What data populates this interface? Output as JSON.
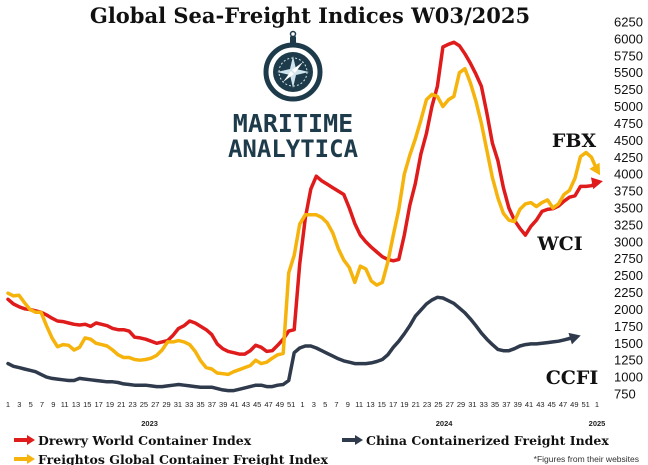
{
  "chart_data": {
    "type": "line",
    "title": "Global Sea-Freight Indices W03/2025",
    "ylim": [
      750,
      6250
    ],
    "y_ticks": [
      6250,
      6000,
      5750,
      5500,
      5250,
      5000,
      4750,
      4500,
      4250,
      4000,
      3750,
      3500,
      3250,
      3000,
      2750,
      2500,
      2250,
      2000,
      1750,
      1500,
      1250,
      1000,
      750
    ],
    "x_week_labels": [
      "1",
      "3",
      "5",
      "7",
      "9",
      "11",
      "13",
      "15",
      "17",
      "19",
      "21",
      "23",
      "25",
      "27",
      "29",
      "31",
      "33",
      "35",
      "37",
      "39",
      "41",
      "43",
      "45",
      "47",
      "49",
      "51",
      "1",
      "3",
      "5",
      "7",
      "9",
      "11",
      "13",
      "15",
      "17",
      "19",
      "21",
      "23",
      "25",
      "27",
      "29",
      "31",
      "33",
      "35",
      "37",
      "39",
      "41",
      "43",
      "45",
      "47",
      "49",
      "51",
      "1"
    ],
    "year_labels": [
      "2023",
      "2024",
      "2025"
    ],
    "series": [
      {
        "name": "Drewry World Container Index",
        "tag": "WCI",
        "color": "#e01b1b",
        "values": [
          2150,
          2080,
          2040,
          2010,
          2000,
          1980,
          1960,
          1920,
          1870,
          1830,
          1820,
          1800,
          1780,
          1770,
          1780,
          1750,
          1800,
          1780,
          1760,
          1720,
          1700,
          1700,
          1680,
          1590,
          1580,
          1560,
          1530,
          1500,
          1520,
          1540,
          1620,
          1720,
          1760,
          1830,
          1800,
          1750,
          1700,
          1630,
          1490,
          1420,
          1380,
          1360,
          1340,
          1340,
          1390,
          1470,
          1440,
          1380,
          1390,
          1470,
          1560,
          1680,
          1700,
          2670,
          3350,
          3780,
          3970,
          3900,
          3850,
          3800,
          3750,
          3700,
          3500,
          3270,
          3100,
          3000,
          2920,
          2850,
          2780,
          2740,
          2720,
          2740,
          3100,
          3540,
          3860,
          4300,
          4600,
          5000,
          5300,
          5880,
          5920,
          5950,
          5900,
          5780,
          5640,
          5480,
          5300,
          4900,
          4460,
          4200,
          3800,
          3500,
          3320,
          3200,
          3100,
          3230,
          3320,
          3450,
          3480,
          3490,
          3530,
          3600,
          3660,
          3680,
          3820,
          3820,
          3830,
          3880
        ]
      },
      {
        "name": "Freightos Global Container Freight Index",
        "tag": "FBX",
        "color": "#f5b30b",
        "values": [
          2240,
          2200,
          2210,
          2100,
          2000,
          1960,
          1960,
          1760,
          1580,
          1450,
          1480,
          1470,
          1400,
          1440,
          1580,
          1560,
          1500,
          1480,
          1460,
          1400,
          1330,
          1290,
          1290,
          1260,
          1250,
          1260,
          1280,
          1320,
          1400,
          1520,
          1520,
          1540,
          1520,
          1480,
          1380,
          1240,
          1140,
          1120,
          1060,
          1050,
          1040,
          1080,
          1110,
          1140,
          1170,
          1250,
          1200,
          1220,
          1280,
          1330,
          1350,
          2540,
          2800,
          3260,
          3400,
          3400,
          3400,
          3360,
          3280,
          3130,
          2900,
          2730,
          2620,
          2400,
          2640,
          2600,
          2420,
          2360,
          2400,
          2700,
          3100,
          3480,
          4000,
          4280,
          4520,
          4800,
          5100,
          5180,
          5150,
          5000,
          5100,
          5150,
          5500,
          5560,
          5350,
          5080,
          4750,
          4350,
          3950,
          3650,
          3420,
          3320,
          3300,
          3480,
          3560,
          3580,
          3520,
          3580,
          3620,
          3500,
          3560,
          3700,
          3760,
          3940,
          4260,
          4320,
          4250,
          4060
        ]
      },
      {
        "name": "China Containerized Freight Index",
        "tag": "CCFI",
        "color": "#2f3b4c",
        "values": [
          1200,
          1160,
          1140,
          1120,
          1100,
          1080,
          1040,
          1000,
          980,
          970,
          960,
          950,
          950,
          980,
          970,
          960,
          950,
          940,
          930,
          930,
          920,
          900,
          890,
          880,
          880,
          880,
          870,
          860,
          860,
          870,
          880,
          890,
          880,
          870,
          860,
          850,
          850,
          850,
          830,
          810,
          800,
          800,
          820,
          840,
          860,
          880,
          880,
          860,
          860,
          880,
          890,
          950,
          1360,
          1430,
          1460,
          1460,
          1430,
          1390,
          1350,
          1310,
          1270,
          1240,
          1220,
          1200,
          1200,
          1200,
          1210,
          1230,
          1260,
          1330,
          1440,
          1530,
          1640,
          1760,
          1900,
          1990,
          2080,
          2140,
          2180,
          2170,
          2130,
          2090,
          2020,
          1950,
          1860,
          1760,
          1650,
          1560,
          1480,
          1410,
          1390,
          1390,
          1420,
          1460,
          1480,
          1490,
          1490,
          1500,
          1510,
          1520,
          1530,
          1550,
          1570,
          1590
        ]
      }
    ],
    "note": "*Figures from their websites"
  },
  "logo": {
    "line1": "MARITIME",
    "line2": "ANALYTICA",
    "icon": "compass-icon",
    "color": "#1d3b4a"
  }
}
